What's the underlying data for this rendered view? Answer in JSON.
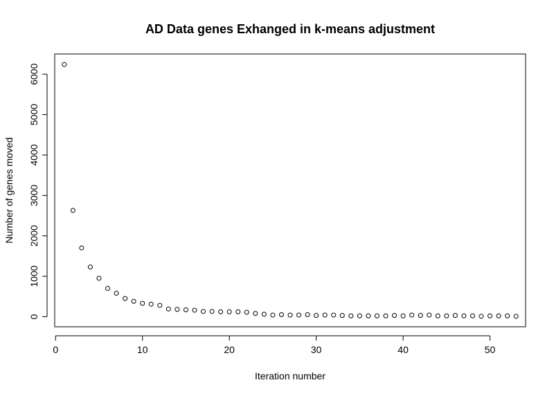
{
  "chart_data": {
    "type": "scatter",
    "title": "AD Data genes Exhanged in k-means adjustment",
    "xlabel": "Iteration number",
    "ylabel": "Number of genes moved",
    "xlim": [
      -0.1,
      54.1
    ],
    "ylim": [
      -250,
      6500
    ],
    "xticks": [
      0,
      10,
      20,
      30,
      40,
      50
    ],
    "yticks": [
      0,
      1000,
      2000,
      3000,
      4000,
      5000,
      6000
    ],
    "x": [
      1,
      2,
      3,
      4,
      5,
      6,
      7,
      8,
      9,
      10,
      11,
      12,
      13,
      14,
      15,
      16,
      17,
      18,
      19,
      20,
      21,
      22,
      23,
      24,
      25,
      26,
      27,
      28,
      29,
      30,
      31,
      32,
      33,
      34,
      35,
      36,
      37,
      38,
      39,
      40,
      41,
      42,
      43,
      44,
      45,
      46,
      47,
      48,
      49,
      50,
      51,
      52,
      53
    ],
    "y": [
      6240,
      2630,
      1700,
      1230,
      950,
      700,
      580,
      450,
      380,
      330,
      310,
      280,
      190,
      180,
      170,
      160,
      130,
      130,
      120,
      120,
      120,
      110,
      80,
      60,
      40,
      50,
      40,
      40,
      50,
      30,
      40,
      40,
      30,
      20,
      20,
      20,
      20,
      20,
      30,
      20,
      40,
      30,
      40,
      20,
      20,
      30,
      20,
      20,
      10,
      20,
      20,
      20,
      10
    ],
    "grid": false,
    "marker": "open-circle"
  }
}
